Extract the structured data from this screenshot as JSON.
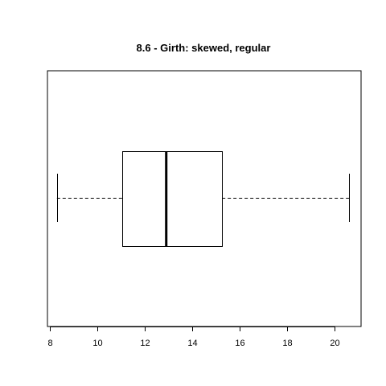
{
  "chart_data": {
    "type": "boxplot",
    "orientation": "horizontal",
    "title": "8.6 - Girth: skewed, regular",
    "xlabel": "",
    "ylabel": "",
    "xlim": [
      7.9,
      21.1
    ],
    "x_ticks": [
      8,
      10,
      12,
      14,
      16,
      18,
      20
    ],
    "x_tick_labels": [
      "8",
      "10",
      "12",
      "14",
      "16",
      "18",
      "20"
    ],
    "box": {
      "whisker_low": 8.3,
      "q1": 11.05,
      "median": 12.9,
      "q3": 15.25,
      "whisker_high": 20.6
    },
    "grid": false,
    "colors": {
      "stroke": "#000000",
      "box_fill": "#ffffff"
    }
  }
}
